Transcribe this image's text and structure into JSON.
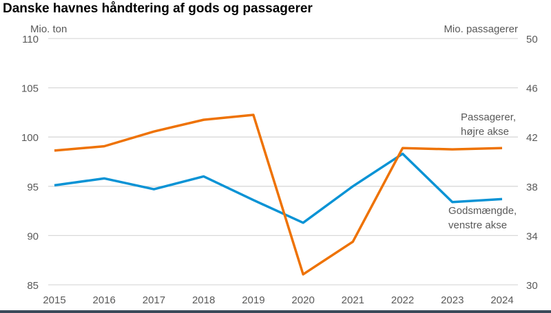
{
  "chart_data": {
    "type": "line",
    "title": "Danske havnes håndtering af gods og passagerer",
    "left_axis": {
      "label": "Mio. ton",
      "ylim": [
        85,
        110
      ],
      "ticks": [
        85,
        90,
        95,
        100,
        105,
        110
      ]
    },
    "right_axis": {
      "label": "Mio. passagerer",
      "ylim": [
        30,
        50
      ],
      "ticks": [
        30,
        34,
        38,
        42,
        46,
        50
      ]
    },
    "categories": [
      "2015",
      "2016",
      "2017",
      "2018",
      "2019",
      "2020",
      "2021",
      "2022",
      "2023",
      "2024"
    ],
    "grid": true,
    "series": [
      {
        "name": "Godsmængde, venstre akse",
        "name_lines": [
          "Godsmængde,",
          "venstre akse"
        ],
        "axis": "left",
        "color": "#0a93d5",
        "values": [
          95.1,
          95.8,
          94.7,
          96.0,
          93.6,
          91.3,
          95.0,
          98.3,
          93.4,
          93.7
        ]
      },
      {
        "name": "Passagerer, højre akse",
        "name_lines": [
          "Passagerer,",
          "højre akse"
        ],
        "axis": "right",
        "color": "#ee7203",
        "values": [
          40.9,
          41.25,
          42.45,
          43.4,
          43.8,
          30.85,
          33.5,
          41.1,
          41.0,
          41.1
        ]
      }
    ]
  }
}
